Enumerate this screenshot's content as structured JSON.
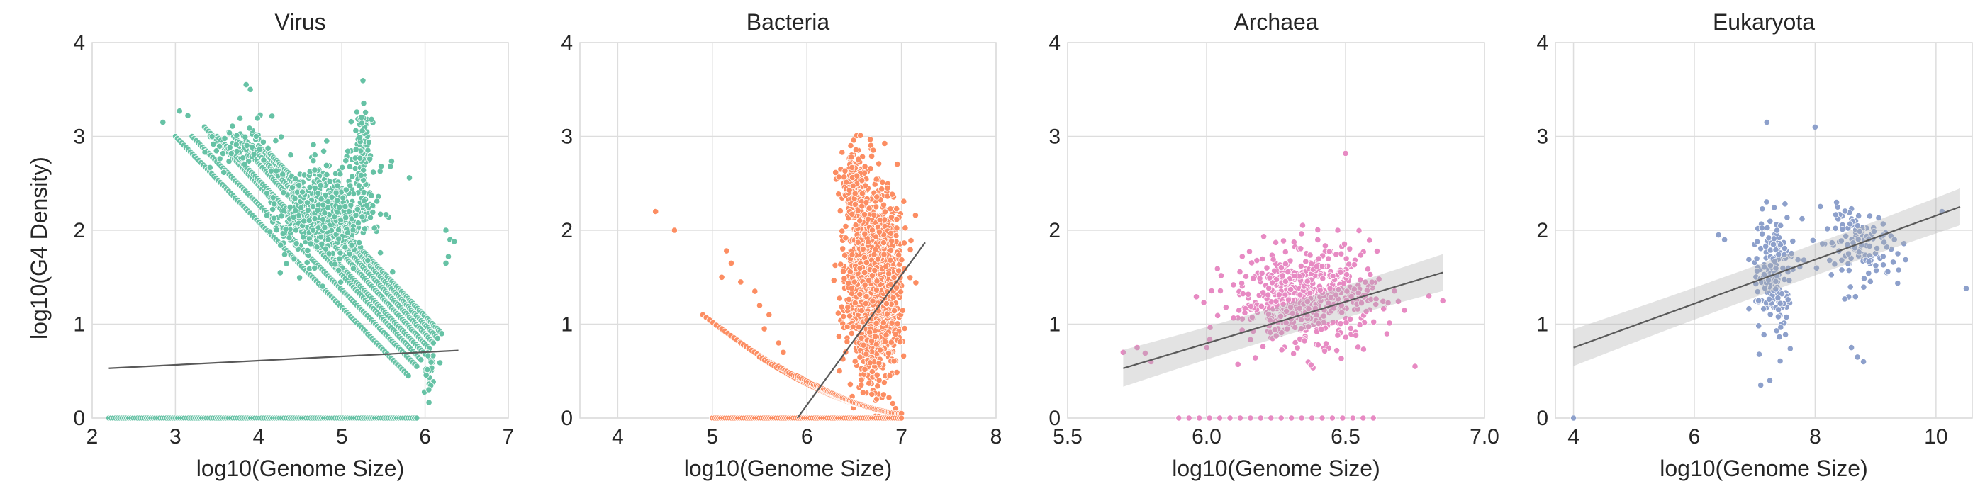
{
  "figure": {
    "ylabel": "log10(G4 Density)"
  },
  "chart_data": [
    {
      "type": "scatter",
      "title": "Virus",
      "xlabel": "log10(Genome Size)",
      "ylabel": "log10(G4 Density)",
      "xlim": [
        2,
        7
      ],
      "ylim": [
        0,
        4
      ],
      "xticks": [
        "2",
        "3",
        "4",
        "5",
        "6",
        "7"
      ],
      "yticks": [
        "0",
        "1",
        "2",
        "3",
        "4"
      ],
      "grid": true,
      "color": "#66c2a5",
      "regression": {
        "x": [
          2.2,
          6.4
        ],
        "y": [
          0.53,
          0.72
        ],
        "ci": false
      },
      "series": [
        {
          "kind": "diagonal_bands",
          "x_start": [
            3.0,
            3.2,
            3.35,
            3.5,
            3.7,
            3.85,
            4.0,
            4.1
          ],
          "y_start": [
            3.0,
            3.0,
            3.1,
            3.0,
            3.0,
            2.95,
            2.9,
            2.85
          ],
          "x_end": [
            5.8,
            5.9,
            5.95,
            6.0,
            6.05,
            6.1,
            6.15,
            6.2
          ],
          "y_end": [
            0.45,
            0.55,
            0.62,
            0.68,
            0.74,
            0.8,
            0.85,
            0.9
          ]
        },
        {
          "kind": "cluster",
          "center": [
            4.8,
            2.2
          ],
          "spread": [
            0.55,
            0.45
          ],
          "count": 520
        },
        {
          "kind": "cluster",
          "center": [
            5.25,
            2.9
          ],
          "spread": [
            0.08,
            0.35
          ],
          "count": 90
        },
        {
          "kind": "cluster",
          "center": [
            3.8,
            2.9
          ],
          "spread": [
            0.3,
            0.2
          ],
          "count": 70
        },
        {
          "kind": "cluster",
          "center": [
            6.05,
            0.5
          ],
          "spread": [
            0.1,
            0.25
          ],
          "count": 25
        },
        {
          "kind": "points",
          "points": [
            [
              2.85,
              3.15
            ],
            [
              3.05,
              3.27
            ],
            [
              3.15,
              3.22
            ],
            [
              3.85,
              3.55
            ],
            [
              3.9,
              3.5
            ],
            [
              6.25,
              2.0
            ],
            [
              6.3,
              1.9
            ],
            [
              6.35,
              1.88
            ],
            [
              6.28,
              1.72
            ],
            [
              6.25,
              1.65
            ]
          ]
        },
        {
          "kind": "baseline",
          "x_from": 2.2,
          "x_to": 5.9,
          "y": 0.0,
          "count": 140
        }
      ]
    },
    {
      "type": "scatter",
      "title": "Bacteria",
      "xlabel": "log10(Genome Size)",
      "ylabel": "",
      "xlim": [
        3.6,
        8
      ],
      "ylim": [
        0,
        4
      ],
      "xticks": [
        "4",
        "5",
        "6",
        "7",
        "8"
      ],
      "yticks": [
        "0",
        "1",
        "2",
        "3",
        "4"
      ],
      "grid": true,
      "color": "#fc8d62",
      "regression": {
        "x": [
          5.9,
          7.25
        ],
        "y": [
          0.0,
          1.87
        ],
        "ci": false
      },
      "series": [
        {
          "kind": "cluster",
          "center": [
            6.7,
            1.4
          ],
          "spread": [
            0.22,
            0.75
          ],
          "count": 1700
        },
        {
          "kind": "cluster",
          "center": [
            6.5,
            2.5
          ],
          "spread": [
            0.12,
            0.35
          ],
          "count": 160
        },
        {
          "kind": "curves",
          "x_start": [
            4.9,
            5.1,
            5.3,
            5.5,
            5.7,
            5.9,
            6.1
          ],
          "y_start": [
            1.05,
            0.9,
            0.75,
            0.6,
            0.5,
            0.4,
            0.3
          ],
          "x_end": 7.0
        },
        {
          "kind": "points",
          "points": [
            [
              4.4,
              2.2
            ],
            [
              4.6,
              2.0
            ],
            [
              5.15,
              1.78
            ],
            [
              5.2,
              1.65
            ],
            [
              5.1,
              1.5
            ],
            [
              5.3,
              1.45
            ],
            [
              5.45,
              1.35
            ],
            [
              5.5,
              1.2
            ],
            [
              5.6,
              1.1
            ],
            [
              5.55,
              0.95
            ],
            [
              5.7,
              0.8
            ],
            [
              5.75,
              0.7
            ]
          ]
        },
        {
          "kind": "baseline",
          "x_from": 5.0,
          "x_to": 7.0,
          "y": 0.0,
          "count": 90
        }
      ]
    },
    {
      "type": "scatter",
      "title": "Archaea",
      "xlabel": "log10(Genome Size)",
      "ylabel": "",
      "xlim": [
        5.5,
        7.0
      ],
      "ylim": [
        0,
        4
      ],
      "xticks": [
        "5.5",
        "6.0",
        "6.5",
        "7.0"
      ],
      "yticks": [
        "0",
        "1",
        "2",
        "3",
        "4"
      ],
      "grid": true,
      "color": "#e78ac3",
      "regression": {
        "x": [
          5.7,
          6.85
        ],
        "y": [
          0.53,
          1.55
        ],
        "ci": true
      },
      "series": [
        {
          "kind": "cluster",
          "center": [
            6.35,
            1.3
          ],
          "spread": [
            0.22,
            0.45
          ],
          "count": 620
        },
        {
          "kind": "points",
          "points": [
            [
              6.5,
              2.82
            ],
            [
              5.7,
              0.7
            ],
            [
              5.75,
              0.75
            ],
            [
              5.8,
              0.6
            ],
            [
              6.8,
              1.3
            ],
            [
              6.85,
              1.25
            ],
            [
              6.75,
              0.55
            ]
          ]
        },
        {
          "kind": "baseline",
          "x_from": 5.9,
          "x_to": 6.6,
          "y": 0.0,
          "count": 20
        }
      ]
    },
    {
      "type": "scatter",
      "title": "Eukaryota",
      "xlabel": "log10(Genome Size)",
      "ylabel": "",
      "xlim": [
        3.7,
        10.6
      ],
      "ylim": [
        0,
        4
      ],
      "xticks": [
        "4",
        "6",
        "8",
        "10"
      ],
      "yticks": [
        "0",
        "1",
        "2",
        "3",
        "4"
      ],
      "grid": true,
      "color": "#8da0cb",
      "regression": {
        "x": [
          4.0,
          10.4
        ],
        "y": [
          0.75,
          2.25
        ],
        "ci": true
      },
      "series": [
        {
          "kind": "cluster",
          "center": [
            7.3,
            1.5
          ],
          "spread": [
            0.25,
            0.55
          ],
          "count": 200
        },
        {
          "kind": "cluster",
          "center": [
            8.7,
            1.85
          ],
          "spread": [
            0.55,
            0.35
          ],
          "count": 130
        },
        {
          "kind": "points",
          "points": [
            [
              7.2,
              3.15
            ],
            [
              8.0,
              3.1
            ],
            [
              7.1,
              0.35
            ],
            [
              7.25,
              0.4
            ],
            [
              8.7,
              0.65
            ],
            [
              8.8,
              0.6
            ],
            [
              8.6,
              0.75
            ],
            [
              6.4,
              1.95
            ],
            [
              6.5,
              1.9
            ],
            [
              10.1,
              2.2
            ],
            [
              10.5,
              1.38
            ],
            [
              4.0,
              0.0
            ]
          ]
        }
      ]
    }
  ]
}
